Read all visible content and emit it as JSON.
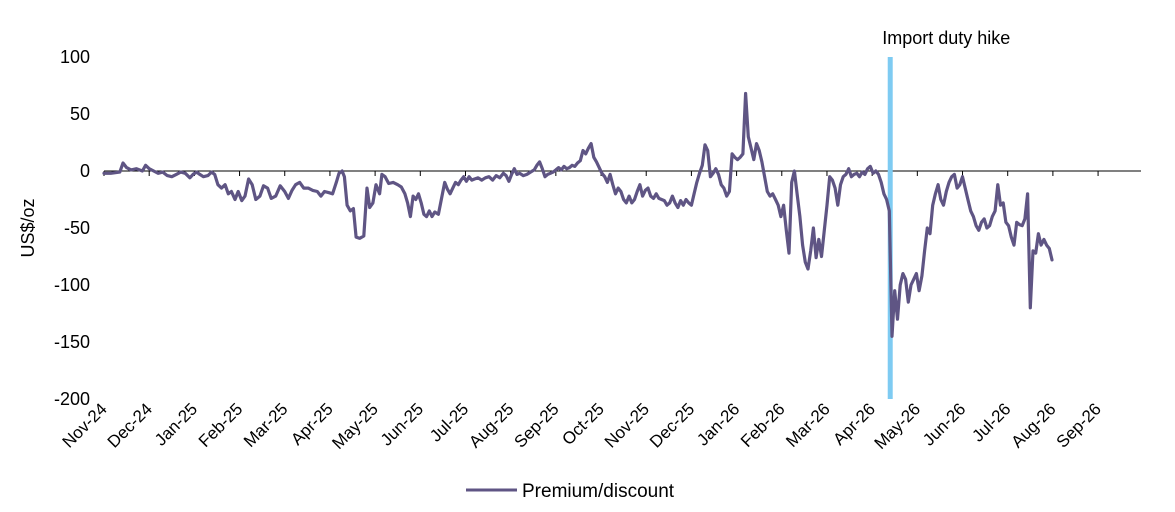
{
  "chart_data": {
    "type": "line",
    "title": "",
    "xlabel": "",
    "ylabel": "US$/oz",
    "ylim": [
      -200,
      100
    ],
    "yticks": [
      100,
      50,
      0,
      -50,
      -100,
      -150,
      -200
    ],
    "ytick_labels": [
      "100",
      "50",
      "0",
      "-50",
      "-100",
      "-150",
      "-200"
    ],
    "x_tick_labels": [
      "Nov-24",
      "Dec-24",
      "Jan-25",
      "Feb-25",
      "Mar-25",
      "Apr-25",
      "May-25",
      "Jun-25",
      "Jul-25",
      "Aug-25",
      "Sep-25",
      "Oct-25",
      "Nov-25",
      "Dec-25",
      "Jan-26",
      "Feb-26",
      "Mar-26",
      "Apr-26",
      "May-26",
      "Jun-26",
      "Jul-26",
      "Aug-26",
      "Sep-26"
    ],
    "x_start": "Nov-24",
    "grid": false,
    "legend_position": "bottom-center",
    "series": [
      {
        "name": "Premium/discount",
        "color": "#5f5584",
        "points": [
          [
            0.0,
            -2
          ],
          [
            0.15,
            -2
          ],
          [
            0.35,
            -1
          ],
          [
            0.42,
            7
          ],
          [
            0.5,
            3
          ],
          [
            0.6,
            1
          ],
          [
            0.72,
            2
          ],
          [
            0.85,
            0
          ],
          [
            0.92,
            5
          ],
          [
            1.0,
            2
          ],
          [
            1.1,
            0
          ],
          [
            1.2,
            -2
          ],
          [
            1.3,
            -1
          ],
          [
            1.4,
            -4
          ],
          [
            1.5,
            -5
          ],
          [
            1.6,
            -3
          ],
          [
            1.7,
            -1
          ],
          [
            1.8,
            -2
          ],
          [
            1.9,
            -6
          ],
          [
            1.97,
            -3
          ],
          [
            2.05,
            -1
          ],
          [
            2.12,
            -3
          ],
          [
            2.2,
            -5
          ],
          [
            2.3,
            -4
          ],
          [
            2.38,
            -1
          ],
          [
            2.45,
            -3
          ],
          [
            2.52,
            -12
          ],
          [
            2.6,
            -15
          ],
          [
            2.68,
            -12
          ],
          [
            2.75,
            -20
          ],
          [
            2.82,
            -18
          ],
          [
            2.9,
            -25
          ],
          [
            2.97,
            -18
          ],
          [
            3.05,
            -26
          ],
          [
            3.12,
            -22
          ],
          [
            3.2,
            -7
          ],
          [
            3.28,
            -12
          ],
          [
            3.36,
            -25
          ],
          [
            3.45,
            -22
          ],
          [
            3.53,
            -13
          ],
          [
            3.62,
            -15
          ],
          [
            3.7,
            -24
          ],
          [
            3.8,
            -22
          ],
          [
            3.9,
            -13
          ],
          [
            4.0,
            -18
          ],
          [
            4.08,
            -24
          ],
          [
            4.16,
            -17
          ],
          [
            4.24,
            -12
          ],
          [
            4.33,
            -10
          ],
          [
            4.42,
            -15
          ],
          [
            4.52,
            -15
          ],
          [
            4.62,
            -17
          ],
          [
            4.72,
            -18
          ],
          [
            4.8,
            -22
          ],
          [
            4.88,
            -18
          ],
          [
            4.98,
            -19
          ],
          [
            5.06,
            -20
          ],
          [
            5.14,
            -10
          ],
          [
            5.2,
            -2
          ],
          [
            5.27,
            0
          ],
          [
            5.32,
            -5
          ],
          [
            5.38,
            -30
          ],
          [
            5.45,
            -35
          ],
          [
            5.52,
            -33
          ],
          [
            5.58,
            -58
          ],
          [
            5.66,
            -59
          ],
          [
            5.75,
            -57
          ],
          [
            5.82,
            -15
          ],
          [
            5.88,
            -32
          ],
          [
            5.95,
            -28
          ],
          [
            6.02,
            -12
          ],
          [
            6.1,
            -20
          ],
          [
            6.15,
            -3
          ],
          [
            6.22,
            -5
          ],
          [
            6.3,
            -11
          ],
          [
            6.4,
            -10
          ],
          [
            6.5,
            -12
          ],
          [
            6.58,
            -14
          ],
          [
            6.66,
            -20
          ],
          [
            6.72,
            -28
          ],
          [
            6.78,
            -40
          ],
          [
            6.84,
            -22
          ],
          [
            6.9,
            -25
          ],
          [
            6.96,
            -20
          ],
          [
            7.02,
            -28
          ],
          [
            7.08,
            -38
          ],
          [
            7.14,
            -40
          ],
          [
            7.2,
            -35
          ],
          [
            7.26,
            -40
          ],
          [
            7.32,
            -36
          ],
          [
            7.4,
            -38
          ],
          [
            7.48,
            -22
          ],
          [
            7.54,
            -10
          ],
          [
            7.6,
            -16
          ],
          [
            7.66,
            -20
          ],
          [
            7.72,
            -15
          ],
          [
            7.78,
            -10
          ],
          [
            7.84,
            -12
          ],
          [
            7.9,
            -8
          ],
          [
            7.96,
            -5
          ],
          [
            8.02,
            -9
          ],
          [
            8.08,
            -5
          ],
          [
            8.14,
            -8
          ],
          [
            8.2,
            -7
          ],
          [
            8.28,
            -6
          ],
          [
            8.36,
            -8
          ],
          [
            8.44,
            -6
          ],
          [
            8.52,
            -5
          ],
          [
            8.6,
            -8
          ],
          [
            8.68,
            -4
          ],
          [
            8.76,
            -6
          ],
          [
            8.84,
            -2
          ],
          [
            8.9,
            -4
          ],
          [
            8.96,
            -9
          ],
          [
            9.02,
            -3
          ],
          [
            9.08,
            2
          ],
          [
            9.14,
            -3
          ],
          [
            9.2,
            -2
          ],
          [
            9.28,
            -4
          ],
          [
            9.36,
            -3
          ],
          [
            9.44,
            -1
          ],
          [
            9.52,
            1
          ],
          [
            9.58,
            5
          ],
          [
            9.64,
            8
          ],
          [
            9.7,
            2
          ],
          [
            9.76,
            -5
          ],
          [
            9.82,
            -3
          ],
          [
            9.88,
            -2
          ],
          [
            9.94,
            -1
          ],
          [
            10.0,
            1
          ],
          [
            10.06,
            3
          ],
          [
            10.12,
            1
          ],
          [
            10.18,
            4
          ],
          [
            10.24,
            2
          ],
          [
            10.3,
            3
          ],
          [
            10.36,
            5
          ],
          [
            10.42,
            4
          ],
          [
            10.48,
            7
          ],
          [
            10.54,
            9
          ],
          [
            10.6,
            18
          ],
          [
            10.66,
            15
          ],
          [
            10.72,
            20
          ],
          [
            10.78,
            24
          ],
          [
            10.84,
            12
          ],
          [
            10.9,
            8
          ],
          [
            10.96,
            3
          ],
          [
            11.02,
            -2
          ],
          [
            11.08,
            -5
          ],
          [
            11.14,
            -10
          ],
          [
            11.2,
            -3
          ],
          [
            11.26,
            -12
          ],
          [
            11.32,
            -20
          ],
          [
            11.38,
            -15
          ],
          [
            11.44,
            -18
          ],
          [
            11.5,
            -25
          ],
          [
            11.56,
            -28
          ],
          [
            11.62,
            -22
          ],
          [
            11.68,
            -28
          ],
          [
            11.74,
            -25
          ],
          [
            11.8,
            -18
          ],
          [
            11.86,
            -12
          ],
          [
            11.92,
            -22
          ],
          [
            11.98,
            -17
          ],
          [
            12.04,
            -15
          ],
          [
            12.1,
            -22
          ],
          [
            12.16,
            -24
          ],
          [
            12.22,
            -20
          ],
          [
            12.28,
            -24
          ],
          [
            12.34,
            -25
          ],
          [
            12.4,
            -26
          ],
          [
            12.46,
            -30
          ],
          [
            12.52,
            -28
          ],
          [
            12.58,
            -22
          ],
          [
            12.64,
            -28
          ],
          [
            12.7,
            -32
          ],
          [
            12.76,
            -26
          ],
          [
            12.82,
            -30
          ],
          [
            12.88,
            -25
          ],
          [
            12.94,
            -28
          ],
          [
            13.0,
            -30
          ],
          [
            13.06,
            -20
          ],
          [
            13.12,
            -10
          ],
          [
            13.18,
            -2
          ],
          [
            13.24,
            5
          ],
          [
            13.3,
            23
          ],
          [
            13.36,
            18
          ],
          [
            13.42,
            -5
          ],
          [
            13.48,
            -2
          ],
          [
            13.54,
            2
          ],
          [
            13.6,
            -3
          ],
          [
            13.66,
            -12
          ],
          [
            13.72,
            -15
          ],
          [
            13.78,
            -22
          ],
          [
            13.84,
            -18
          ],
          [
            13.9,
            15
          ],
          [
            13.96,
            12
          ],
          [
            14.02,
            10
          ],
          [
            14.08,
            12
          ],
          [
            14.14,
            15
          ],
          [
            14.2,
            68
          ],
          [
            14.26,
            30
          ],
          [
            14.32,
            20
          ],
          [
            14.38,
            10
          ],
          [
            14.44,
            24
          ],
          [
            14.5,
            18
          ],
          [
            14.56,
            8
          ],
          [
            14.62,
            -5
          ],
          [
            14.68,
            -18
          ],
          [
            14.74,
            -22
          ],
          [
            14.8,
            -20
          ],
          [
            14.86,
            -25
          ],
          [
            14.92,
            -30
          ],
          [
            14.98,
            -40
          ],
          [
            15.04,
            -30
          ],
          [
            15.1,
            -52
          ],
          [
            15.16,
            -72
          ],
          [
            15.22,
            -10
          ],
          [
            15.28,
            0
          ],
          [
            15.34,
            -20
          ],
          [
            15.4,
            -40
          ],
          [
            15.46,
            -65
          ],
          [
            15.52,
            -80
          ],
          [
            15.58,
            -86
          ],
          [
            15.64,
            -70
          ],
          [
            15.7,
            -50
          ],
          [
            15.76,
            -76
          ],
          [
            15.82,
            -60
          ],
          [
            15.88,
            -75
          ],
          [
            15.94,
            -52
          ],
          [
            16.0,
            -30
          ],
          [
            16.06,
            -5
          ],
          [
            16.12,
            -8
          ],
          [
            16.18,
            -15
          ],
          [
            16.24,
            -30
          ],
          [
            16.3,
            -12
          ],
          [
            16.36,
            -5
          ],
          [
            16.42,
            -3
          ],
          [
            16.48,
            2
          ],
          [
            16.54,
            -5
          ],
          [
            16.6,
            -3
          ],
          [
            16.66,
            -2
          ],
          [
            16.72,
            -5
          ],
          [
            16.78,
            -1
          ],
          [
            16.84,
            -3
          ],
          [
            16.9,
            2
          ],
          [
            16.96,
            4
          ],
          [
            17.02,
            -2
          ],
          [
            17.08,
            0
          ],
          [
            17.14,
            -3
          ],
          [
            17.2,
            -10
          ],
          [
            17.26,
            -20
          ],
          [
            17.32,
            -25
          ],
          [
            17.38,
            -35
          ],
          [
            17.44,
            -145
          ],
          [
            17.5,
            -105
          ],
          [
            17.56,
            -130
          ],
          [
            17.62,
            -100
          ],
          [
            17.68,
            -90
          ],
          [
            17.74,
            -95
          ],
          [
            17.8,
            -115
          ],
          [
            17.86,
            -100
          ],
          [
            17.92,
            -95
          ],
          [
            17.98,
            -90
          ],
          [
            18.04,
            -105
          ],
          [
            18.1,
            -92
          ],
          [
            18.16,
            -70
          ],
          [
            18.22,
            -50
          ],
          [
            18.28,
            -55
          ],
          [
            18.34,
            -30
          ],
          [
            18.4,
            -20
          ],
          [
            18.46,
            -12
          ],
          [
            18.52,
            -25
          ],
          [
            18.58,
            -30
          ],
          [
            18.64,
            -18
          ],
          [
            18.7,
            -10
          ],
          [
            18.76,
            -5
          ],
          [
            18.82,
            -3
          ],
          [
            18.88,
            -15
          ],
          [
            18.94,
            -12
          ],
          [
            19.0,
            -5
          ],
          [
            19.06,
            -15
          ],
          [
            19.12,
            -25
          ],
          [
            19.18,
            -35
          ],
          [
            19.24,
            -40
          ],
          [
            19.3,
            -48
          ],
          [
            19.36,
            -52
          ],
          [
            19.42,
            -45
          ],
          [
            19.48,
            -42
          ],
          [
            19.54,
            -50
          ],
          [
            19.6,
            -48
          ],
          [
            19.66,
            -40
          ],
          [
            19.72,
            -35
          ],
          [
            19.78,
            -12
          ],
          [
            19.84,
            -30
          ],
          [
            19.9,
            -28
          ],
          [
            19.96,
            -45
          ],
          [
            20.02,
            -48
          ],
          [
            20.08,
            -58
          ],
          [
            20.14,
            -65
          ],
          [
            20.2,
            -45
          ],
          [
            20.26,
            -47
          ],
          [
            20.32,
            -48
          ],
          [
            20.38,
            -42
          ],
          [
            20.44,
            -20
          ],
          [
            20.5,
            -120
          ],
          [
            20.56,
            -70
          ],
          [
            20.62,
            -72
          ],
          [
            20.68,
            -55
          ],
          [
            20.74,
            -65
          ],
          [
            20.8,
            -60
          ],
          [
            20.86,
            -65
          ],
          [
            20.92,
            -68
          ],
          [
            20.98,
            -78
          ]
        ]
      }
    ],
    "annotations": [
      {
        "text": "Import duty hike",
        "x": 17.4,
        "color": "#7ecbf2"
      }
    ]
  }
}
